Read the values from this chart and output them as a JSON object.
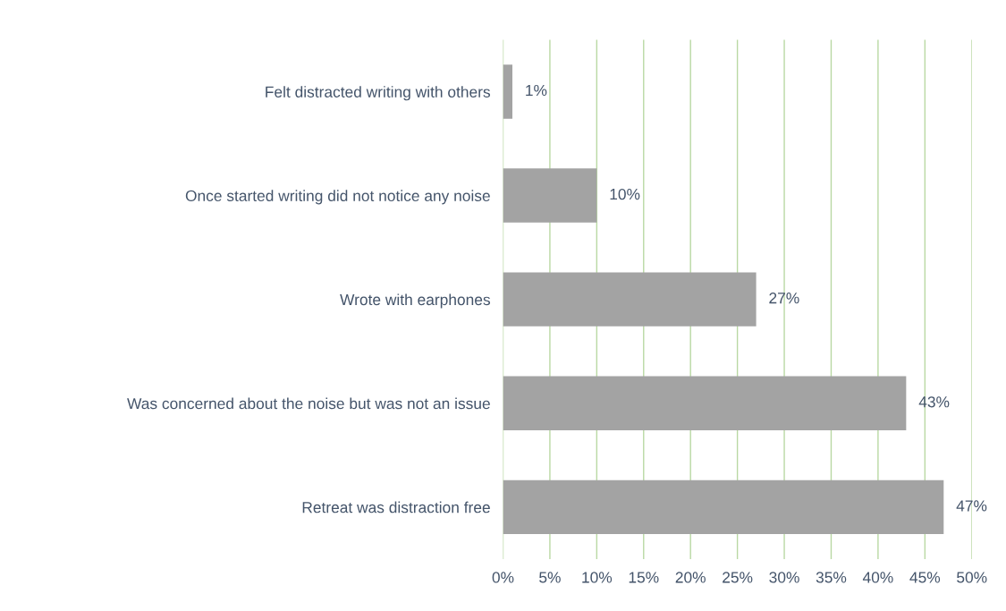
{
  "chart_data": {
    "type": "bar",
    "orientation": "horizontal",
    "categories": [
      "Felt distracted writing with others",
      "Once started writing did not notice any noise",
      "Wrote with earphones",
      "Was concerned about the noise but was not an issue",
      "Retreat was distraction free"
    ],
    "values": [
      1,
      10,
      27,
      43,
      47
    ],
    "value_labels": [
      "1%",
      "10%",
      "27%",
      "43%",
      "47%"
    ],
    "color": "#a3a3a3",
    "xlim": [
      0,
      50
    ],
    "xticks": [
      {
        "value": 0,
        "label": "0%"
      },
      {
        "value": 5,
        "label": "5%"
      },
      {
        "value": 10,
        "label": "10%"
      },
      {
        "value": 15,
        "label": "15%"
      },
      {
        "value": 20,
        "label": "20%"
      },
      {
        "value": 25,
        "label": "25%"
      },
      {
        "value": 30,
        "label": "30%"
      },
      {
        "value": 35,
        "label": "35%"
      },
      {
        "value": 40,
        "label": "40%"
      },
      {
        "value": 45,
        "label": "45%"
      },
      {
        "value": 50,
        "label": "50%"
      }
    ],
    "grid": "x"
  }
}
